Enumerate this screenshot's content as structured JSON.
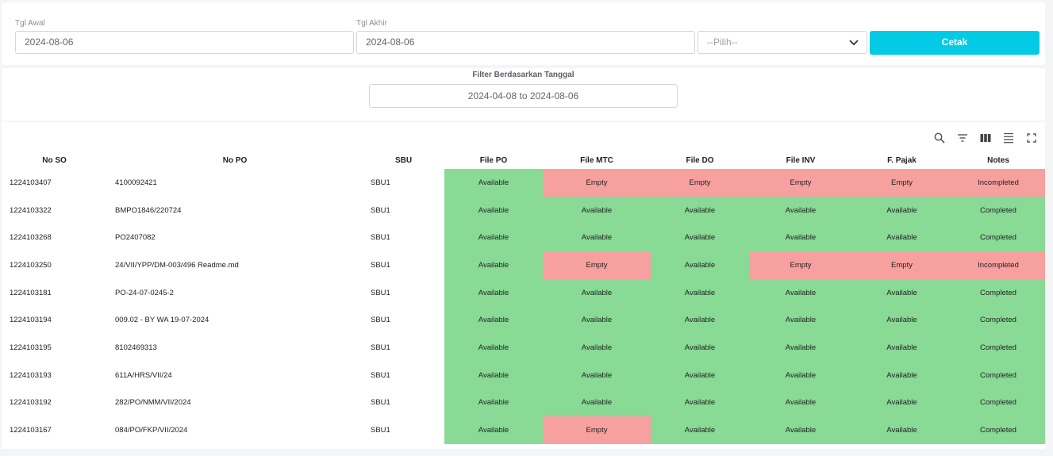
{
  "filters": {
    "start_label": "Tgl Awal",
    "start_value": "2024-08-06",
    "end_label": "Tgl Akhir",
    "end_value": "2024-08-06",
    "select_value": "--Pilih--",
    "print_button": "Cetak"
  },
  "date_filter": {
    "title": "Filter Berdasarkan Tanggal",
    "range": "2024-04-08 to 2024-08-06"
  },
  "toolbar": [
    "search-icon",
    "filter-icon",
    "columns-icon",
    "density-icon",
    "fullscreen-icon"
  ],
  "colors": {
    "accent": "#03cbe6",
    "available": "#88da95",
    "empty": "#f7a0a0"
  },
  "table": {
    "headers": [
      "No SO",
      "No PO",
      "SBU",
      "File PO",
      "File MTC",
      "File DO",
      "File INV",
      "F. Pajak",
      "Notes"
    ],
    "rows": [
      [
        "1224103407",
        "4100092421",
        "SBU1",
        "Available",
        "Empty",
        "Empty",
        "Empty",
        "Empty",
        "Incompleted"
      ],
      [
        "1224103322",
        "BMPO1846/220724",
        "SBU1",
        "Available",
        "Available",
        "Available",
        "Available",
        "Available",
        "Completed"
      ],
      [
        "1224103268",
        "PO2407082",
        "SBU1",
        "Available",
        "Available",
        "Available",
        "Available",
        "Available",
        "Completed"
      ],
      [
        "1224103250",
        "24/VII/YPP/DM-003/496 Readme.md",
        "SBU1",
        "Available",
        "Empty",
        "Available",
        "Empty",
        "Empty",
        "Incompleted"
      ],
      [
        "1224103181",
        "PO-24-07-0245-2",
        "SBU1",
        "Available",
        "Available",
        "Available",
        "Available",
        "Available",
        "Completed"
      ],
      [
        "1224103194",
        "009.02 - BY WA 19-07-2024",
        "SBU1",
        "Available",
        "Available",
        "Available",
        "Available",
        "Available",
        "Completed"
      ],
      [
        "1224103195",
        "8102469313",
        "SBU1",
        "Available",
        "Available",
        "Available",
        "Available",
        "Available",
        "Completed"
      ],
      [
        "1224103193",
        "611A/HRS/VII/24",
        "SBU1",
        "Available",
        "Available",
        "Available",
        "Available",
        "Available",
        "Completed"
      ],
      [
        "1224103192",
        "282/PO/NMM/VII/2024",
        "SBU1",
        "Available",
        "Available",
        "Available",
        "Available",
        "Available",
        "Completed"
      ],
      [
        "1224103167",
        "084/PO/FKP/VII/2024",
        "SBU1",
        "Available",
        "Empty",
        "Available",
        "Available",
        "Available",
        "Completed"
      ]
    ]
  }
}
